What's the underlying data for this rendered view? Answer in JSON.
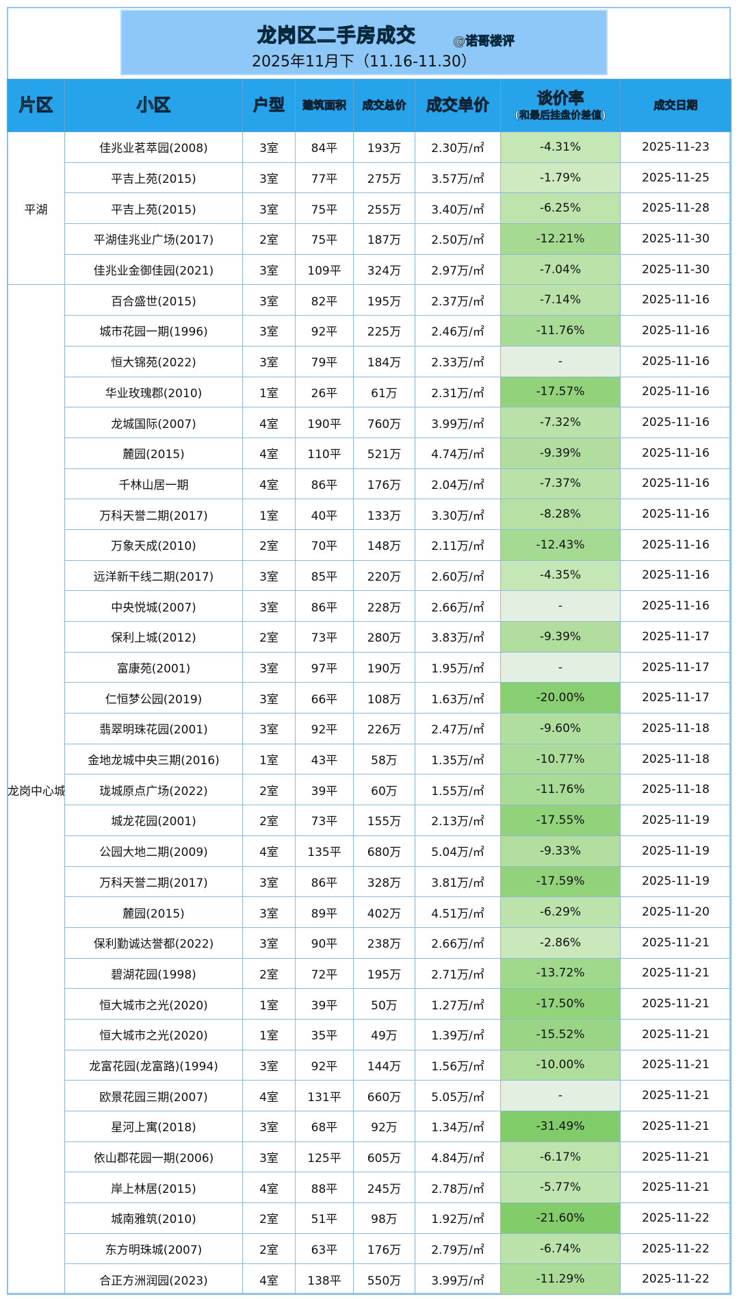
{
  "banner": {
    "title": "龙岗区二手房成交",
    "handle": "@诺哥楼评",
    "period": "2025年11月下（11.16-11.30）"
  },
  "headers": {
    "area": "片区",
    "community": "小区",
    "layout": "户型",
    "size": "建筑面积",
    "total": "成交总价",
    "unit": "成交单价",
    "rate": "谈价率",
    "rate_sub": "(和最后挂盘价差值)",
    "date": "成交日期"
  },
  "colors": {
    "header_bg": "#27a3ec",
    "banner_bg": "#8ec8f8",
    "rate_none": "#e3efe0",
    "rate_max": "#82cc6a"
  },
  "groups": [
    {
      "area": "平湖",
      "rows": [
        {
          "name": "佳兆业茗萃园(2008)",
          "layout": "3室",
          "size": "84平",
          "total": "193万",
          "unit": "2.30万/㎡",
          "rate": "-4.31%",
          "date": "2025-11-23"
        },
        {
          "name": "平吉上苑(2015)",
          "layout": "3室",
          "size": "77平",
          "total": "275万",
          "unit": "3.57万/㎡",
          "rate": "-1.79%",
          "date": "2025-11-25"
        },
        {
          "name": "平吉上苑(2015)",
          "layout": "3室",
          "size": "75平",
          "total": "255万",
          "unit": "3.40万/㎡",
          "rate": "-6.25%",
          "date": "2025-11-28"
        },
        {
          "name": "平湖佳兆业广场(2017)",
          "layout": "2室",
          "size": "75平",
          "total": "187万",
          "unit": "2.50万/㎡",
          "rate": "-12.21%",
          "date": "2025-11-30"
        },
        {
          "name": "佳兆业金御佳园(2021)",
          "layout": "3室",
          "size": "109平",
          "total": "324万",
          "unit": "2.97万/㎡",
          "rate": "-7.04%",
          "date": "2025-11-30"
        }
      ]
    },
    {
      "area": "龙岗中心城",
      "rows": [
        {
          "name": "百合盛世(2015)",
          "layout": "3室",
          "size": "82平",
          "total": "195万",
          "unit": "2.37万/㎡",
          "rate": "-7.14%",
          "date": "2025-11-16"
        },
        {
          "name": "城市花园一期(1996)",
          "layout": "3室",
          "size": "92平",
          "total": "225万",
          "unit": "2.46万/㎡",
          "rate": "-11.76%",
          "date": "2025-11-16"
        },
        {
          "name": "恒大锦苑(2022)",
          "layout": "3室",
          "size": "79平",
          "total": "184万",
          "unit": "2.33万/㎡",
          "rate": "-",
          "date": "2025-11-16"
        },
        {
          "name": "华业玫瑰郡(2010)",
          "layout": "1室",
          "size": "26平",
          "total": "61万",
          "unit": "2.31万/㎡",
          "rate": "-17.57%",
          "date": "2025-11-16"
        },
        {
          "name": "龙城国际(2007)",
          "layout": "4室",
          "size": "190平",
          "total": "760万",
          "unit": "3.99万/㎡",
          "rate": "-7.32%",
          "date": "2025-11-16"
        },
        {
          "name": "麓园(2015)",
          "layout": "4室",
          "size": "110平",
          "total": "521万",
          "unit": "4.74万/㎡",
          "rate": "-9.39%",
          "date": "2025-11-16"
        },
        {
          "name": "千林山居一期",
          "layout": "4室",
          "size": "86平",
          "total": "176万",
          "unit": "2.04万/㎡",
          "rate": "-7.37%",
          "date": "2025-11-16"
        },
        {
          "name": "万科天誉二期(2017)",
          "layout": "1室",
          "size": "40平",
          "total": "133万",
          "unit": "3.30万/㎡",
          "rate": "-8.28%",
          "date": "2025-11-16"
        },
        {
          "name": "万象天成(2010)",
          "layout": "2室",
          "size": "70平",
          "total": "148万",
          "unit": "2.11万/㎡",
          "rate": "-12.43%",
          "date": "2025-11-16"
        },
        {
          "name": "远洋新干线二期(2017)",
          "layout": "3室",
          "size": "85平",
          "total": "220万",
          "unit": "2.60万/㎡",
          "rate": "-4.35%",
          "date": "2025-11-16"
        },
        {
          "name": "中央悦城(2007)",
          "layout": "3室",
          "size": "86平",
          "total": "228万",
          "unit": "2.66万/㎡",
          "rate": "-",
          "date": "2025-11-16"
        },
        {
          "name": "保利上城(2012)",
          "layout": "2室",
          "size": "73平",
          "total": "280万",
          "unit": "3.83万/㎡",
          "rate": "-9.39%",
          "date": "2025-11-17"
        },
        {
          "name": "富康苑(2001)",
          "layout": "3室",
          "size": "97平",
          "total": "190万",
          "unit": "1.95万/㎡",
          "rate": "-",
          "date": "2025-11-17"
        },
        {
          "name": "仁恒梦公园(2019)",
          "layout": "3室",
          "size": "66平",
          "total": "108万",
          "unit": "1.63万/㎡",
          "rate": "-20.00%",
          "date": "2025-11-17"
        },
        {
          "name": "翡翠明珠花园(2001)",
          "layout": "3室",
          "size": "92平",
          "total": "226万",
          "unit": "2.47万/㎡",
          "rate": "-9.60%",
          "date": "2025-11-18"
        },
        {
          "name": "金地龙城中央三期(2016)",
          "layout": "1室",
          "size": "43平",
          "total": "58万",
          "unit": "1.35万/㎡",
          "rate": "-10.77%",
          "date": "2025-11-18"
        },
        {
          "name": "珑城原点广场(2022)",
          "layout": "2室",
          "size": "39平",
          "total": "60万",
          "unit": "1.55万/㎡",
          "rate": "-11.76%",
          "date": "2025-11-18"
        },
        {
          "name": "城龙花园(2001)",
          "layout": "2室",
          "size": "73平",
          "total": "155万",
          "unit": "2.13万/㎡",
          "rate": "-17.55%",
          "date": "2025-11-19"
        },
        {
          "name": "公园大地二期(2009)",
          "layout": "4室",
          "size": "135平",
          "total": "680万",
          "unit": "5.04万/㎡",
          "rate": "-9.33%",
          "date": "2025-11-19"
        },
        {
          "name": "万科天誉二期(2017)",
          "layout": "3室",
          "size": "86平",
          "total": "328万",
          "unit": "3.81万/㎡",
          "rate": "-17.59%",
          "date": "2025-11-19"
        },
        {
          "name": "麓园(2015)",
          "layout": "3室",
          "size": "89平",
          "total": "402万",
          "unit": "4.51万/㎡",
          "rate": "-6.29%",
          "date": "2025-11-20"
        },
        {
          "name": "保利勤诚达誉都(2022)",
          "layout": "3室",
          "size": "90平",
          "total": "238万",
          "unit": "2.66万/㎡",
          "rate": "-2.86%",
          "date": "2025-11-21"
        },
        {
          "name": "碧湖花园(1998)",
          "layout": "2室",
          "size": "72平",
          "total": "195万",
          "unit": "2.71万/㎡",
          "rate": "-13.72%",
          "date": "2025-11-21"
        },
        {
          "name": "恒大城市之光(2020)",
          "layout": "1室",
          "size": "39平",
          "total": "50万",
          "unit": "1.27万/㎡",
          "rate": "-17.50%",
          "date": "2025-11-21"
        },
        {
          "name": "恒大城市之光(2020)",
          "layout": "1室",
          "size": "35平",
          "total": "49万",
          "unit": "1.39万/㎡",
          "rate": "-15.52%",
          "date": "2025-11-21"
        },
        {
          "name": "龙富花园(龙富路)(1994)",
          "layout": "3室",
          "size": "92平",
          "total": "144万",
          "unit": "1.56万/㎡",
          "rate": "-10.00%",
          "date": "2025-11-21"
        },
        {
          "name": "欧景花园三期(2007)",
          "layout": "4室",
          "size": "131平",
          "total": "660万",
          "unit": "5.05万/㎡",
          "rate": "-",
          "date": "2025-11-21"
        },
        {
          "name": "星河上寓(2018)",
          "layout": "3室",
          "size": "68平",
          "total": "92万",
          "unit": "1.34万/㎡",
          "rate": "-31.49%",
          "date": "2025-11-21"
        },
        {
          "name": "依山郡花园一期(2006)",
          "layout": "3室",
          "size": "125平",
          "total": "605万",
          "unit": "4.84万/㎡",
          "rate": "-6.17%",
          "date": "2025-11-21"
        },
        {
          "name": "岸上林居(2015)",
          "layout": "4室",
          "size": "88平",
          "total": "245万",
          "unit": "2.78万/㎡",
          "rate": "-5.77%",
          "date": "2025-11-21"
        },
        {
          "name": "城南雅筑(2010)",
          "layout": "2室",
          "size": "51平",
          "total": "98万",
          "unit": "1.92万/㎡",
          "rate": "-21.60%",
          "date": "2025-11-22"
        },
        {
          "name": "东方明珠城(2007)",
          "layout": "2室",
          "size": "63平",
          "total": "176万",
          "unit": "2.79万/㎡",
          "rate": "-6.74%",
          "date": "2025-11-22"
        },
        {
          "name": "合正方洲润园(2023)",
          "layout": "4室",
          "size": "138平",
          "total": "550万",
          "unit": "3.99万/㎡",
          "rate": "-11.29%",
          "date": "2025-11-22"
        }
      ]
    }
  ]
}
